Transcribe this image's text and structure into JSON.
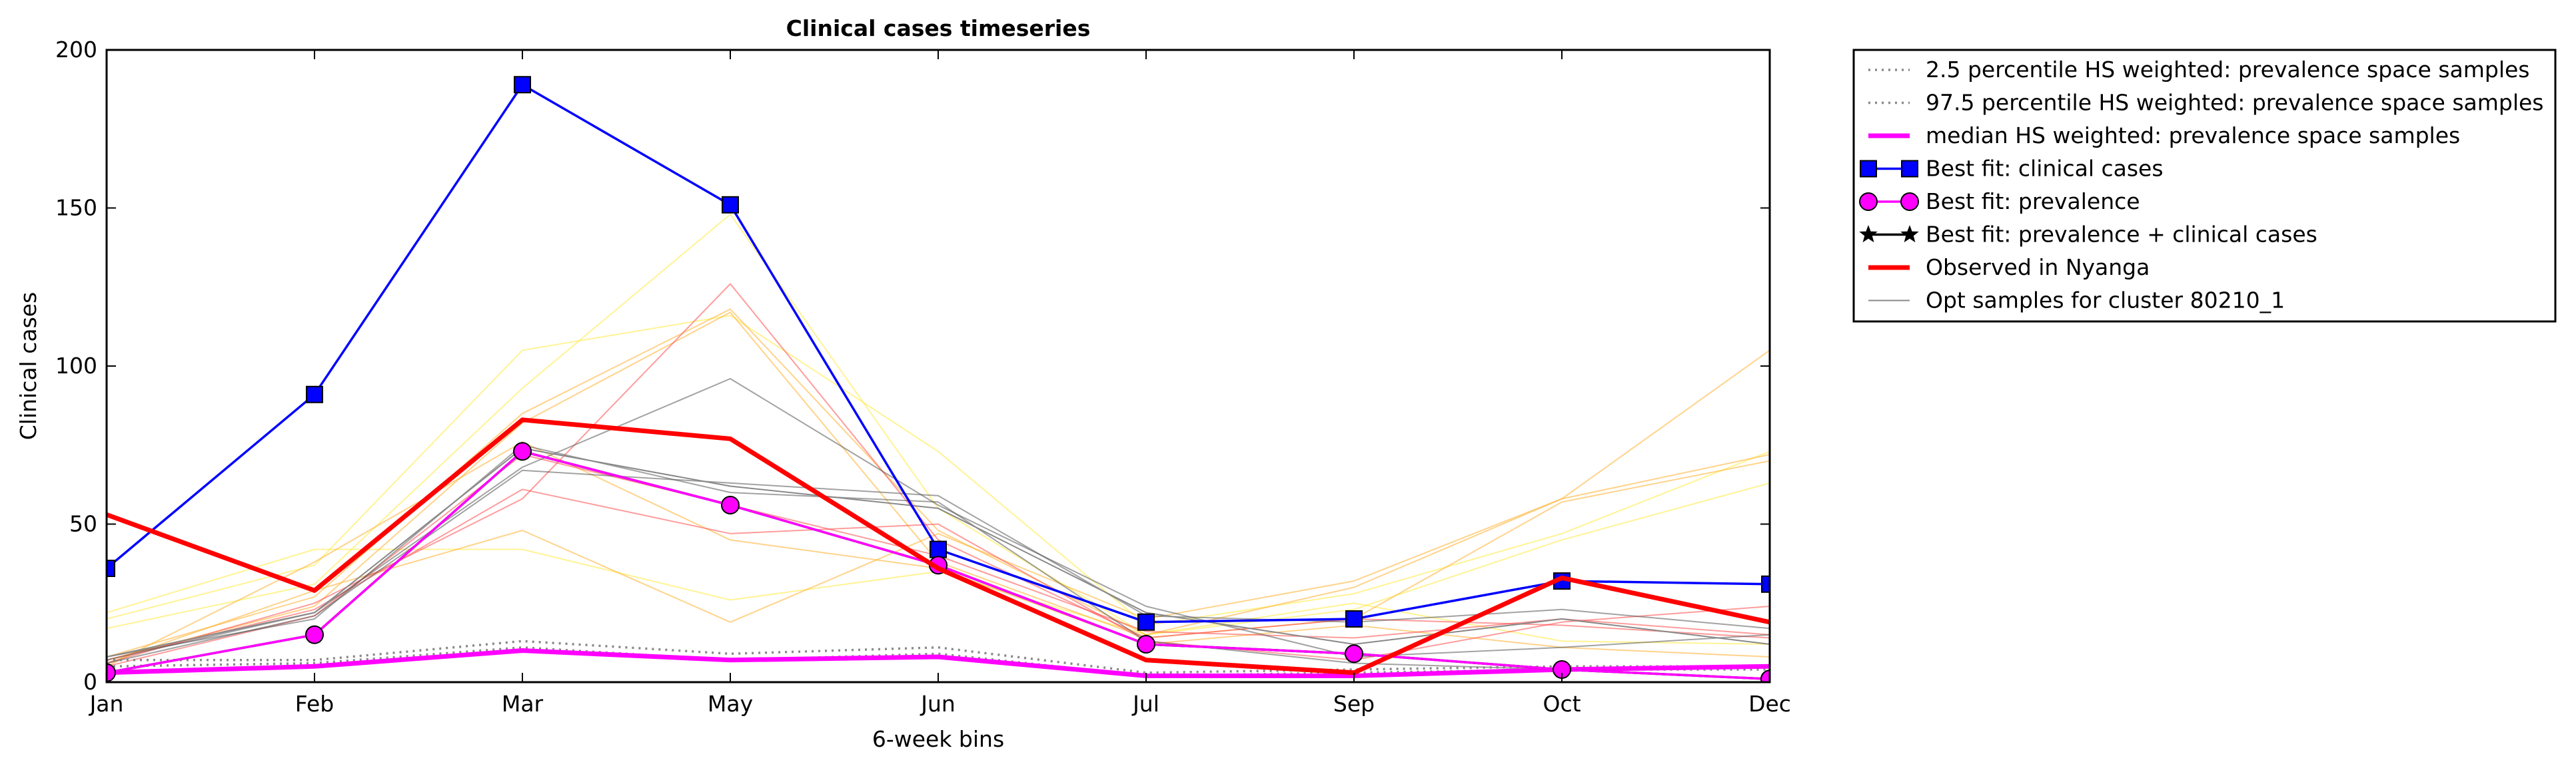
{
  "chart_data": {
    "type": "line",
    "title": "Clinical cases timeseries",
    "xlabel": "6-week bins",
    "ylabel": "Clinical cases",
    "categories": [
      "Jan",
      "Feb",
      "Mar",
      "May",
      "Jun",
      "Jul",
      "Sep",
      "Oct",
      "Dec"
    ],
    "ylim": [
      0,
      200
    ],
    "yticks": [
      0,
      50,
      100,
      150,
      200
    ],
    "grid": false,
    "legend_position": "outside-right-top",
    "background_samples": [
      {
        "color": "#ffea3d",
        "values": [
          20,
          37,
          105,
          116,
          73,
          18,
          28,
          47,
          73
        ]
      },
      {
        "color": "#ffea3d",
        "values": [
          17,
          31,
          93,
          148,
          55,
          15,
          23,
          45,
          63
        ]
      },
      {
        "color": "#ffea3d",
        "values": [
          22,
          42,
          42,
          26,
          35,
          15,
          25,
          13,
          12
        ]
      },
      {
        "color": "#ffae2a",
        "values": [
          8,
          27,
          85,
          118,
          48,
          15,
          30,
          58,
          105
        ]
      },
      {
        "color": "#ffae2a",
        "values": [
          6,
          29,
          48,
          19,
          47,
          20,
          32,
          58,
          72
        ]
      },
      {
        "color": "#ffae2a",
        "values": [
          7,
          24,
          82,
          117,
          38,
          14,
          20,
          57,
          70
        ]
      },
      {
        "color": "#ffae2a",
        "values": [
          5,
          38,
          76,
          45,
          36,
          12,
          18,
          11,
          8
        ]
      },
      {
        "color": "#ff4a4a",
        "values": [
          6,
          25,
          58,
          126,
          45,
          14,
          20,
          18,
          14
        ]
      },
      {
        "color": "#ff4a4a",
        "values": [
          7,
          23,
          61,
          47,
          50,
          13,
          7,
          19,
          24
        ]
      },
      {
        "color": "#ff4a4a",
        "values": [
          5,
          21,
          72,
          56,
          40,
          16,
          14,
          20,
          15
        ]
      },
      {
        "color": "#555555",
        "values": [
          7,
          22,
          68,
          96,
          56,
          24,
          8,
          11,
          15
        ]
      },
      {
        "color": "#555555",
        "values": [
          6,
          21,
          67,
          63,
          59,
          21,
          19,
          23,
          17
        ]
      },
      {
        "color": "#555555",
        "values": [
          8,
          20,
          75,
          60,
          57,
          13,
          6,
          4,
          1
        ]
      }
    ],
    "series": [
      {
        "name": "2.5 percentile HS weighted: prevalence space samples",
        "color": "#888888",
        "style": "dotted",
        "values": [
          5,
          6,
          11,
          7,
          9,
          2,
          3,
          4,
          4
        ]
      },
      {
        "name": "97.5 percentile HS weighted: prevalence space samples",
        "color": "#888888",
        "style": "dotted",
        "values": [
          7,
          7,
          13,
          9,
          11,
          3,
          4,
          5,
          5
        ]
      },
      {
        "name": "median HS weighted: prevalence space samples",
        "color": "#ff00ff",
        "style": "solid",
        "values": [
          3,
          5,
          10,
          7,
          8,
          2,
          2,
          4,
          5
        ]
      },
      {
        "name": "Best fit: clinical cases",
        "color": "#0000ff",
        "marker": "square",
        "values": [
          36,
          91,
          189,
          151,
          42,
          19,
          20,
          32,
          31
        ]
      },
      {
        "name": "Best fit: prevalence",
        "color": "#ff00ff",
        "marker": "circle",
        "values": [
          3,
          15,
          73,
          56,
          37,
          12,
          9,
          4,
          1
        ]
      },
      {
        "name": "Best fit: prevalence + clinical cases",
        "color": "#000000",
        "marker": "star",
        "values": [
          3,
          15,
          73,
          56,
          37,
          12,
          9,
          4,
          1
        ]
      },
      {
        "name": "Observed in Nyanga",
        "color": "#ff0000",
        "style": "thick",
        "values": [
          53,
          29,
          83,
          77,
          36,
          7,
          3,
          33,
          19
        ]
      },
      {
        "name": "Opt samples for cluster 80210_1",
        "color": "#888888",
        "style": "thin",
        "values": [
          8,
          22,
          74,
          62,
          55,
          22,
          12,
          20,
          12
        ]
      }
    ]
  }
}
